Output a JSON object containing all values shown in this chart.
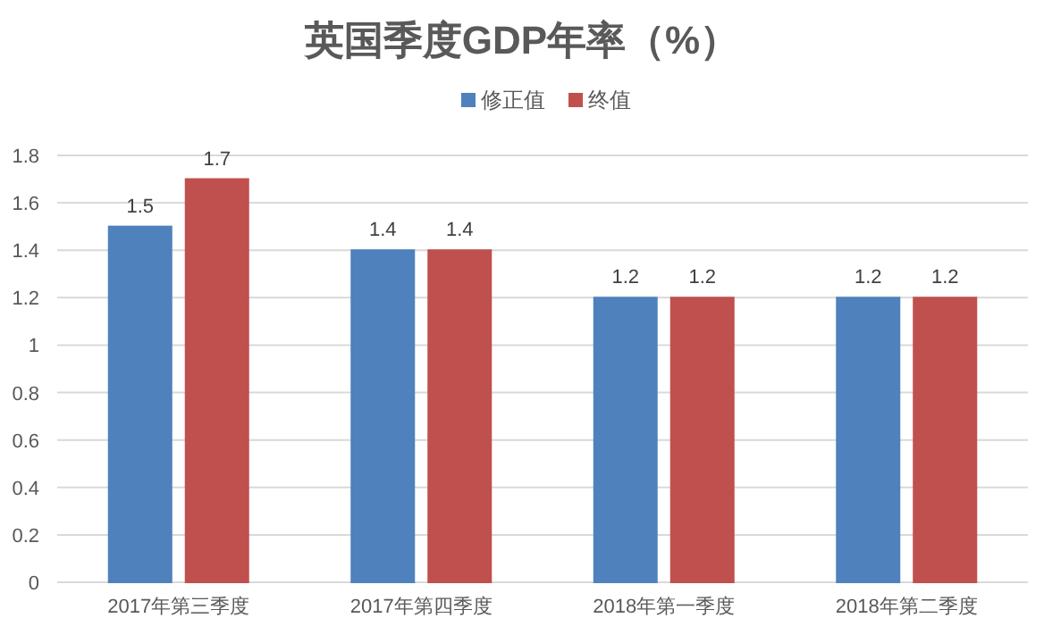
{
  "chart_data": {
    "type": "bar",
    "title": "英国季度GDP年率（%）",
    "categories": [
      "2017年第三季度",
      "2017年第四季度",
      "2018年第一季度",
      "2018年第二季度"
    ],
    "series": [
      {
        "name": "修正值",
        "color": "#4f81bd",
        "values": [
          1.5,
          1.4,
          1.2,
          1.2
        ]
      },
      {
        "name": "终值",
        "color": "#c0504d",
        "values": [
          1.7,
          1.4,
          1.2,
          1.2
        ]
      }
    ],
    "ylim": [
      0,
      1.8
    ],
    "yticks": [
      0,
      0.2,
      0.4,
      0.6,
      0.8,
      1,
      1.2,
      1.4,
      1.6,
      1.8
    ],
    "grid": "y",
    "legend": "top",
    "data_labels": true
  }
}
